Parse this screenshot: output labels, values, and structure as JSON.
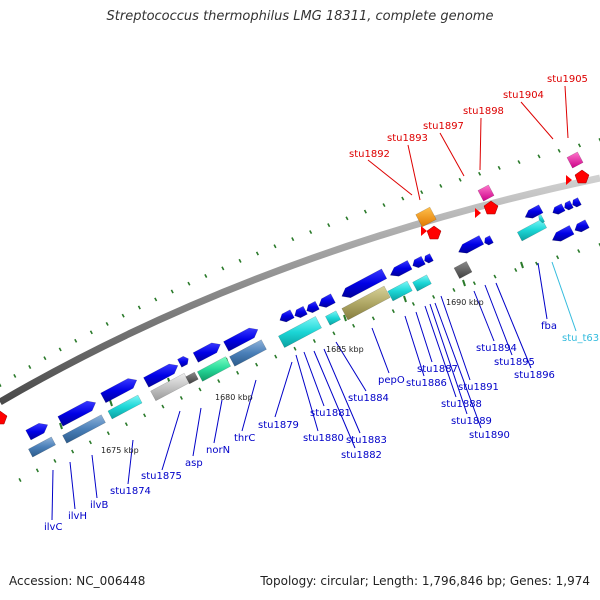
{
  "title": "Streptococcus thermophilus LMG 18311, complete genome",
  "accession": "Accession: NC_006448",
  "topology": "Topology: circular; Length: 1,796,846 bp; Genes: 1,974",
  "colors": {
    "background": "#ffffff",
    "backbone": "#8a8a8a",
    "cds": "#0000e6",
    "cds_dark": "#0000b3",
    "trna": "#5fd7ff",
    "rrna": "#ff0000",
    "misc": "#ff33aa",
    "label_blue": "#0000c8",
    "label_red": "#dd0000",
    "label_cyan": "#33bbdd",
    "tick": "#2a7a2a"
  },
  "scale_labels": [
    "1675 kbp",
    "1680 kbp",
    "1685 kbp",
    "1690 kbp"
  ],
  "genes_blue": [
    "ilvC",
    "ilvH",
    "ilvB",
    "stu1874",
    "stu1875",
    "asp",
    "norN",
    "thrC",
    "stu1879",
    "stu1880",
    "stu1881",
    "stu1882",
    "stu1883",
    "stu1884",
    "pepO",
    "stu1886",
    "stu1887",
    "stu1888",
    "stu1889",
    "stu1890",
    "stu1891",
    "stu1894",
    "stu1895",
    "stu1896",
    "fba"
  ],
  "genes_red": [
    "stu1892",
    "stu1893",
    "stu1897",
    "stu1898",
    "stu1904",
    "stu1905"
  ],
  "genes_cyan": [
    "stu_t63"
  ]
}
